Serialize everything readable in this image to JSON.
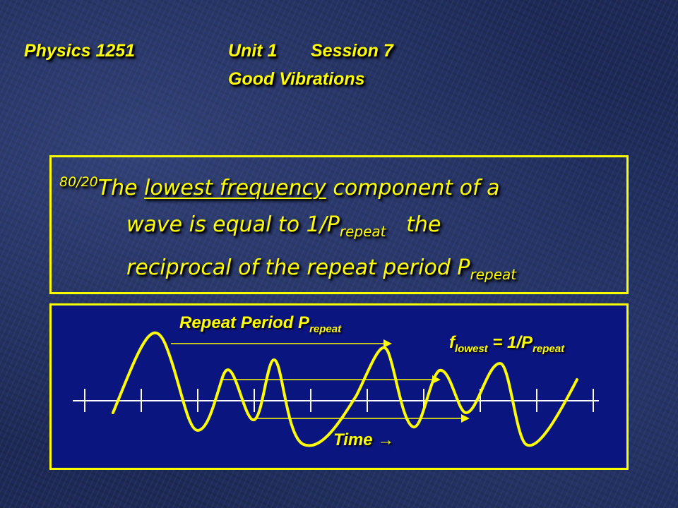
{
  "header": {
    "course": "Physics 1251",
    "unit": "Unit 1",
    "session": "Session  7",
    "topic": "Good Vibrations"
  },
  "statement": {
    "rule_number": "80/20",
    "part1": "The ",
    "underlined": "lowest frequency",
    "part2": " component of a",
    "line2_text": "wave is equal to 1/P",
    "line2_sub": "repeat",
    "line2_after": "   the",
    "line3_text": "reciprocal of the repeat period P",
    "line3_sub": "repeat"
  },
  "diagram": {
    "repeat_label": "Repeat Period  P",
    "repeat_sub": "repeat",
    "flowest_f": "f",
    "flowest_sub1": "lowest",
    "flowest_eq": " = 1/P",
    "flowest_sub2": "repeat",
    "time_label": "Time →",
    "colors": {
      "wave": "#ffff00",
      "axis": "#ffffff",
      "box_bg": "#0b1580",
      "accent": "#ffff00"
    }
  }
}
